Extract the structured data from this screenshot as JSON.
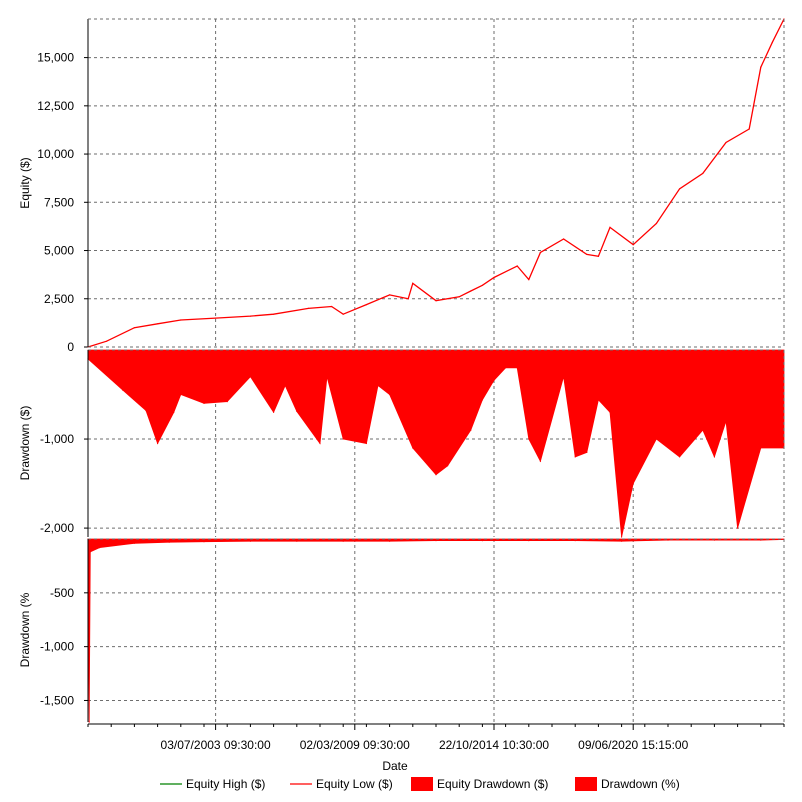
{
  "chart_data": [
    {
      "panel": "equity",
      "type": "line",
      "ylabel": "Equity ($)",
      "ylim": [
        0,
        17000
      ],
      "yticks": [
        0,
        2500,
        5000,
        7500,
        10000,
        12500,
        15000
      ],
      "ytick_labels": [
        "0",
        "2,500",
        "5,000",
        "7,500",
        "10,000",
        "12,500",
        "15,000"
      ],
      "grid": true,
      "series": [
        {
          "name": "Equity Low ($)",
          "color": "#ff0000",
          "x": [
            1998.0,
            1998.8,
            2000.0,
            2001.0,
            2002.0,
            2003.5,
            2005.0,
            2006.0,
            2007.5,
            2008.5,
            2009.0,
            2010.0,
            2011.0,
            2011.8,
            2012.0,
            2013.0,
            2014.0,
            2014.5,
            2015.0,
            2015.5,
            2016.5,
            2017.0,
            2017.5,
            2018.5,
            2019.5,
            2020.0,
            2020.5,
            2021.5,
            2022.5,
            2023.5,
            2024.5,
            2025.5,
            2026.5,
            2027.0,
            2027.5,
            2028.0
          ],
          "values": [
            0,
            300,
            1000,
            1200,
            1400,
            1500,
            1600,
            1700,
            2000,
            2100,
            1700,
            2200,
            2700,
            2500,
            3300,
            2400,
            2600,
            2900,
            3200,
            3600,
            4200,
            3500,
            4900,
            5600,
            4800,
            4700,
            6200,
            5300,
            6400,
            8200,
            9000,
            10600,
            11300,
            14500,
            15800,
            17000
          ]
        }
      ]
    },
    {
      "panel": "drawdown-dollars",
      "type": "area",
      "ylabel": "Drawdown ($)",
      "ylim": [
        -2100,
        0
      ],
      "yticks": [
        -1000,
        -2000
      ],
      "ytick_labels": [
        "-1,000",
        "-2,000"
      ],
      "grid": true,
      "series": [
        {
          "name": "Equity Drawdown ($)",
          "color": "#ff0000",
          "x": [
            1998.0,
            1999.5,
            2000.5,
            2001.0,
            2001.7,
            2002.0,
            2003.0,
            2004.0,
            2005.0,
            2006.0,
            2006.5,
            2007.0,
            2008.0,
            2008.3,
            2009.0,
            2010.0,
            2010.5,
            2011.0,
            2012.0,
            2013.0,
            2013.5,
            2014.5,
            2015.0,
            2015.5,
            2016.0,
            2016.5,
            2017.0,
            2017.5,
            2018.5,
            2019.0,
            2019.5,
            2020.0,
            2020.5,
            2021.0,
            2021.5,
            2022.5,
            2023.5,
            2024.5,
            2025.0,
            2025.5,
            2026.0,
            2027.0,
            2028.0
          ],
          "values": [
            -100,
            -450,
            -680,
            -1050,
            -700,
            -500,
            -600,
            -580,
            -300,
            -700,
            -400,
            -690,
            -1050,
            -300,
            -1000,
            -1050,
            -400,
            -500,
            -1100,
            -1400,
            -1300,
            -900,
            -560,
            -340,
            -200,
            -200,
            -1000,
            -1250,
            -300,
            -1200,
            -1150,
            -560,
            -700,
            -2100,
            -1500,
            -1000,
            -1200,
            -900,
            -1200,
            -800,
            -2000,
            -1100,
            -1100
          ]
        }
      ]
    },
    {
      "panel": "drawdown-percent",
      "type": "area",
      "ylabel": "Drawdown (%",
      "ylim": [
        -1700,
        0
      ],
      "yticks": [
        -500,
        -1000,
        -1500
      ],
      "ytick_labels": [
        "-500",
        "-1,000",
        "-1,500"
      ],
      "grid": true,
      "series": [
        {
          "name": "Drawdown (%)",
          "color": "#ff0000",
          "x": [
            1998.0,
            1998.05,
            1998.1,
            1998.5,
            2000.0,
            2001.5,
            2003.0,
            2005.0,
            2007.0,
            2009.0,
            2011.0,
            2013.0,
            2015.0,
            2017.0,
            2019.0,
            2021.0,
            2023.0,
            2025.0,
            2027.0,
            2028.0
          ],
          "values": [
            0,
            -1700,
            -120,
            -80,
            -40,
            -30,
            -25,
            -20,
            -20,
            -20,
            -20,
            -15,
            -15,
            -15,
            -15,
            -20,
            -10,
            -10,
            -10,
            -5
          ]
        }
      ]
    }
  ],
  "x_axis": {
    "xlabel": "Date",
    "xlim": [
      1998.0,
      2028.0
    ],
    "ticks": [
      {
        "x": 2003.5,
        "label": "03/07/2003 09:30:00"
      },
      {
        "x": 2009.5,
        "label": "02/03/2009 09:30:00"
      },
      {
        "x": 2015.5,
        "label": "22/10/2014 10:30:00"
      },
      {
        "x": 2021.5,
        "label": "09/06/2020 15:15:00"
      }
    ]
  },
  "legend": {
    "placement": "bottom",
    "items": [
      {
        "label": "Equity High ($)",
        "color": "#008000",
        "kind": "line"
      },
      {
        "label": "Equity Low ($)",
        "color": "#ff0000",
        "kind": "line"
      },
      {
        "label": "Equity Drawdown ($)",
        "color": "#ff0000",
        "kind": "box"
      },
      {
        "label": "Drawdown (%)",
        "color": "#ff0000",
        "kind": "box"
      }
    ]
  }
}
